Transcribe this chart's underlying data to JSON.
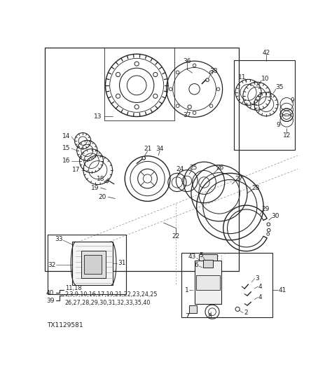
{
  "bg_color": "#ffffff",
  "line_color": "#222222",
  "figsize": [
    4.74,
    5.34
  ],
  "dpi": 100,
  "legend_40": "11,18",
  "legend_39": "2,3,9,10,16,17,19,21,22,23,24,25\n26,27,28,29,30,31,32,33,35,40"
}
